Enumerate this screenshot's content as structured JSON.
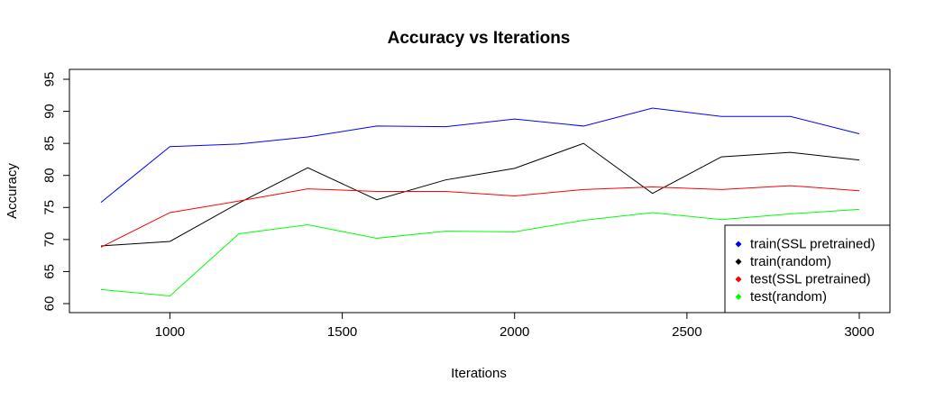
{
  "chart_data": {
    "type": "line",
    "title": "Accuracy vs Iterations",
    "xlabel": "Iterations",
    "ylabel": "Accuracy",
    "x": [
      800,
      1000,
      1200,
      1400,
      1600,
      1800,
      2000,
      2200,
      2400,
      2600,
      2800,
      3000
    ],
    "xlim": [
      800,
      3000
    ],
    "ylim": [
      60,
      95
    ],
    "xticks": [
      1000,
      1500,
      2000,
      2500,
      3000
    ],
    "yticks": [
      60,
      65,
      70,
      75,
      80,
      85,
      90,
      95
    ],
    "grid": false,
    "legend_position": "bottom-right",
    "series": [
      {
        "name": "train(SSL pretrained)",
        "color": "#0000ff",
        "values": [
          75.8,
          84.5,
          84.9,
          86.0,
          87.7,
          87.6,
          88.8,
          87.7,
          90.5,
          89.2,
          89.2,
          86.5
        ]
      },
      {
        "name": "train(random)",
        "color": "#000000",
        "values": [
          69.0,
          69.7,
          75.7,
          81.2,
          76.2,
          79.3,
          81.1,
          85.0,
          77.2,
          82.9,
          83.6,
          82.4
        ]
      },
      {
        "name": "test(SSL pretrained)",
        "color": "#ff0000",
        "values": [
          68.8,
          74.2,
          76.0,
          77.9,
          77.5,
          77.5,
          76.8,
          77.8,
          78.2,
          77.8,
          78.4,
          77.6
        ]
      },
      {
        "name": "test(random)",
        "color": "#00ff00",
        "values": [
          62.2,
          61.2,
          70.9,
          72.3,
          70.2,
          71.3,
          71.2,
          73.0,
          74.2,
          73.1,
          74.0,
          74.7
        ]
      }
    ]
  }
}
